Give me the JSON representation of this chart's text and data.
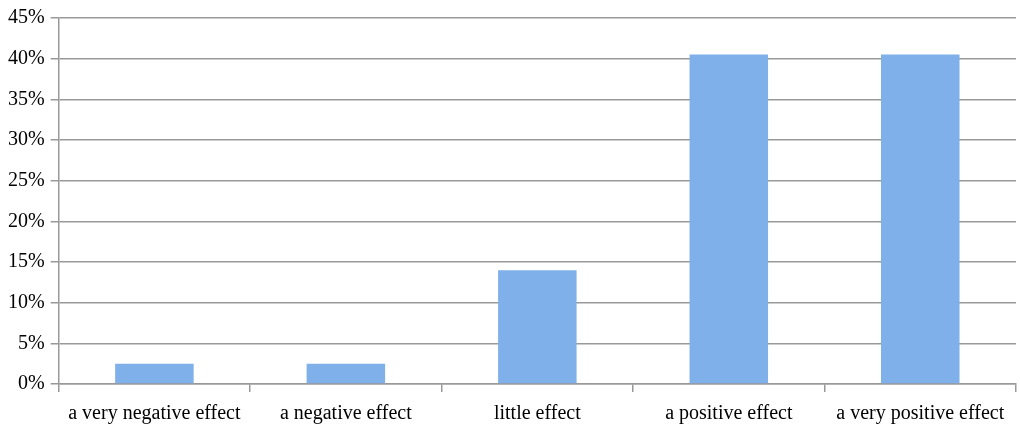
{
  "chart_data": {
    "type": "bar",
    "categories": [
      "a very negative effect",
      "a negative effect",
      "little effect",
      "a positive effect",
      "a very positive effect"
    ],
    "values": [
      2.5,
      2.5,
      14,
      40.5,
      40.5
    ],
    "color": "#7fb0ea",
    "ylim": [
      0,
      45
    ],
    "yticks": [
      {
        "value": 0,
        "label": "0%"
      },
      {
        "value": 5,
        "label": "5%"
      },
      {
        "value": 10,
        "label": "10%"
      },
      {
        "value": 15,
        "label": "15%"
      },
      {
        "value": 20,
        "label": "20%"
      },
      {
        "value": 25,
        "label": "25%"
      },
      {
        "value": 30,
        "label": "30%"
      },
      {
        "value": 35,
        "label": "35%"
      },
      {
        "value": 40,
        "label": "40%"
      },
      {
        "value": 45,
        "label": "45%"
      }
    ],
    "grid": "y",
    "legend": false
  }
}
